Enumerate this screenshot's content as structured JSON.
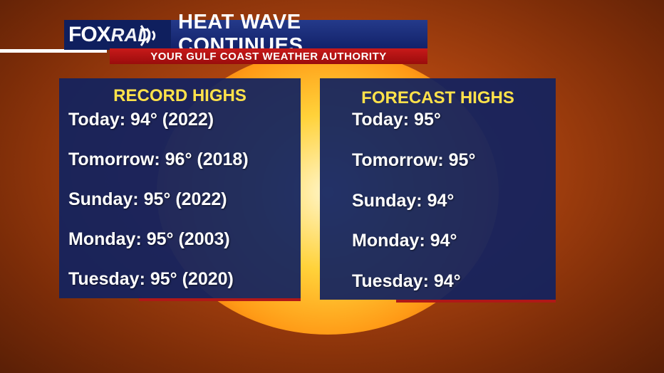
{
  "branding": {
    "logo_fox": "FOX",
    "logo_rad": "RAD",
    "radar_icon": "radar-waves-icon"
  },
  "header": {
    "title": "HEAT WAVE CONTINUES",
    "subtitle": "YOUR GULF COAST WEATHER AUTHORITY"
  },
  "record_highs": {
    "heading": "RECORD HIGHS",
    "rows": [
      "Today: 94° (2022)",
      "Tomorrow: 96° (2018)",
      "Sunday: 95° (2022)",
      "Monday: 95° (2003)",
      "Tuesday: 95° (2020)"
    ]
  },
  "forecast_highs": {
    "heading": "FORECAST HIGHS",
    "rows": [
      "Today: 95°",
      "Tomorrow: 95°",
      "Sunday: 94°",
      "Monday: 94°",
      "Tuesday: 94°"
    ]
  },
  "colors": {
    "panel_blue": "#122260",
    "heading_yellow": "#ffe24a",
    "accent_red": "#b01818",
    "title_blue": "#13226a"
  }
}
